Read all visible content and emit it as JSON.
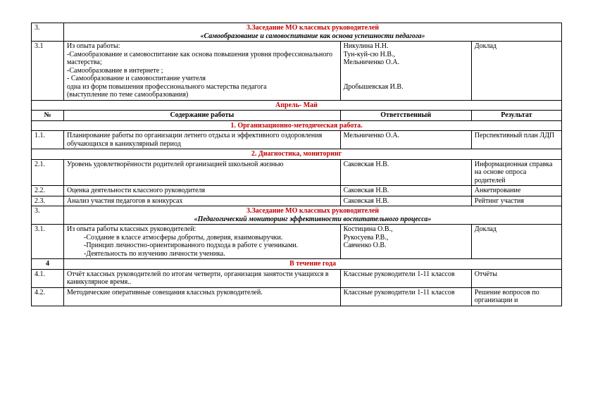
{
  "colors": {
    "accent": "#c00000",
    "text": "#000000",
    "border": "#000000",
    "bg": "#ffffff"
  },
  "fonts": {
    "family": "Times New Roman",
    "base_size_pt": 10
  },
  "rows": {
    "r1_num": "3.",
    "r1_title1": "3.Заседание МО классных руководителей",
    "r1_title2": "«Самообразование и самовоспитание как основа успешности педагога»",
    "r2_num": "3.1",
    "r2_c2_l1": "Из опыта работы:",
    "r2_c2_l2": "-Самообразование и самовоспитание  как основа повышения уровня профессионального мастерства;",
    "r2_c2_l3": "-Самообразование в интернете ;",
    "r2_c2_l4": "- Самообразование и самовоспитание  учителя",
    "r2_c2_l5": "одна из форм повышения профессионального мастерства педагога",
    "r2_c2_l6": "(выступление по теме самообразования)",
    "r2_c3_l1": "Никулина Н.Н.",
    "r2_c3_l2": "Тун-куй-сю Н.В.,",
    "r2_c3_l3": "Мельниченко О.А.",
    "r2_c3_l4": "Дробышевская И.В.",
    "r2_c4": "Доклад",
    "month_hdr": "Апрель- Май",
    "col_num": "№",
    "col_content": "Содержание работы",
    "col_resp": "Ответственный",
    "col_res": "Результат",
    "sec1": "1. Организационно-методическая работа.",
    "r11_num": "1.1.",
    "r11_c2": "Планирование работы по организации летнего отдыха и эффективного оздоровления обучающихся в каникулярный период",
    "r11_c3": "Мельниченко О.А.",
    "r11_c4": "Перспективный план ЛДП",
    "sec2": "2. Диагностика, мониторинг",
    "r21_num": "2.1.",
    "r21_c2": "Уровень удовлетворённости родителей организацией школьной жизнью",
    "r21_c3": "Саковская  Н.В.",
    "r21_c4": "Информационная справка на основе опроса родителей",
    "r22_num": "2.2.",
    "r22_c2": "Оценка деятельности классного руководителя",
    "r22_c3": "Саковская  Н.В.",
    "r22_c4": "Анкетирование",
    "r23_num": "2.3.",
    "r23_c2": "Анализ участия педагогов в конкурсах",
    "r23_c3": "Саковская  Н.В.",
    "r23_c4": "Рейтинг участия",
    "r3_num": "3.",
    "r3_title1": "3.Заседание МО классных руководителей",
    "r3_title2": "«Педагогический  мониторинг эффективности воспитательного процесса»",
    "r31_num": "3.1.",
    "r31_c2_l1": "Из опыта работы классных руководителей:",
    "r31_c2_l2": "-Создание в классе атмосферы доброты, доверия, взаимовыручки.",
    "r31_c2_l3": "-Принцип личностно-ориентированного подхода в работе с учениками.",
    "r31_c2_l4": "-Деятельность по изучению личности ученика.",
    "r31_c3_l1": "Костицина О.В.,",
    "r31_c3_l2": "Рукосуева Р.В.,",
    "r31_c3_l3": "Савченко О.В.",
    "r31_c4": "Доклад",
    "sec_year": "В течение  года",
    "sec_year_num": "4",
    "r41_num": "4.1.",
    "r41_c2": "Отчёт классных руководителей по итогам четверти, организация занятости учащихся в каникулярное время..",
    "r41_c3": "Классные руководители 1-11 классов",
    "r41_c4": "Отчёты",
    "r42_num": "4.2.",
    "r42_c2": "Методические оперативные совещания классных руководителей.",
    "r42_c3": "Классные руководители 1-11 классов",
    "r42_c4": "Решение вопросов по организации и"
  }
}
